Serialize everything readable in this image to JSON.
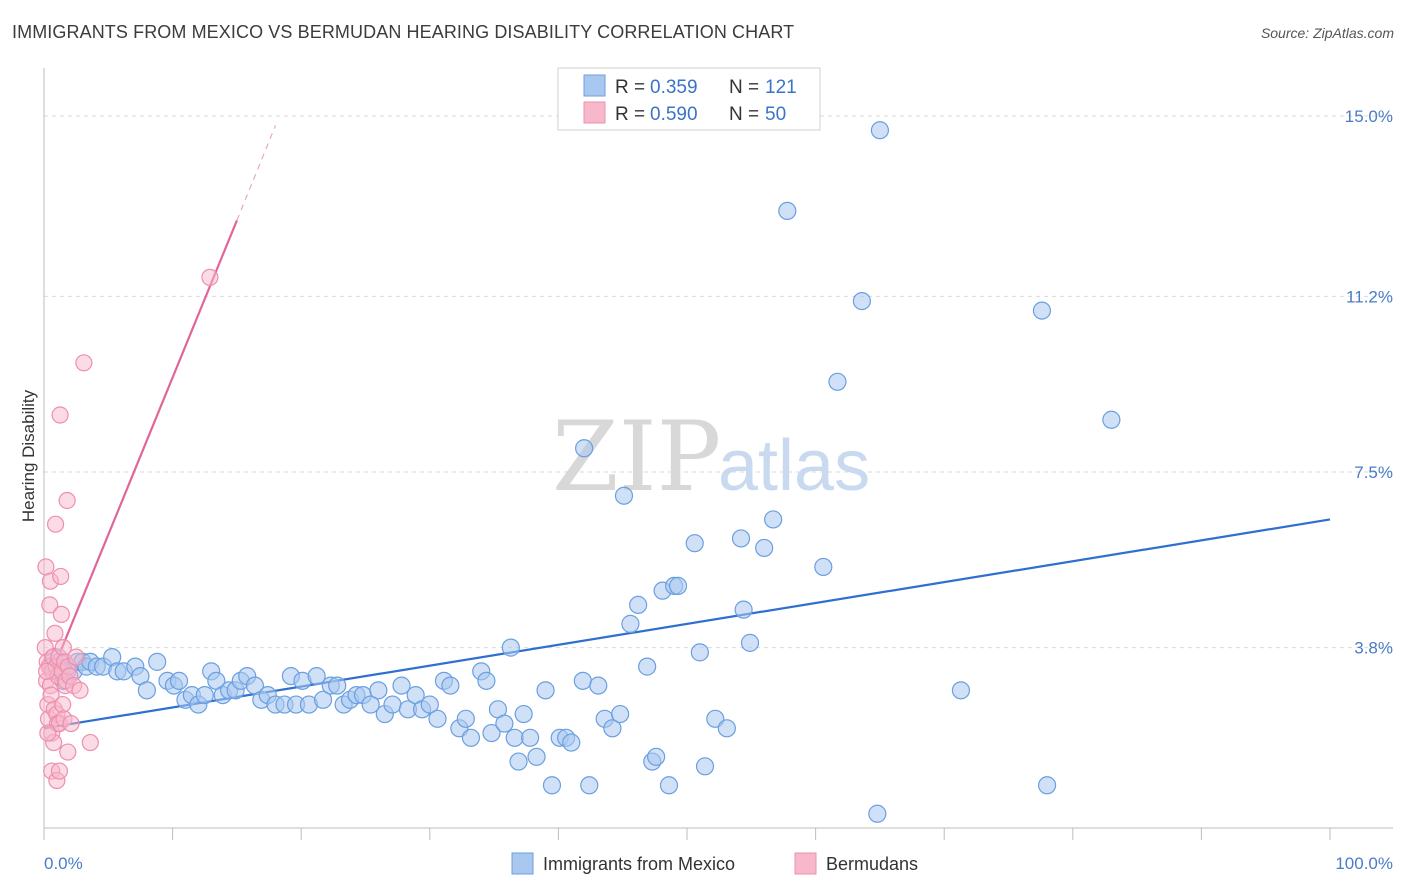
{
  "title": "IMMIGRANTS FROM MEXICO VS BERMUDAN HEARING DISABILITY CORRELATION CHART",
  "source": "Source: ZipAtlas.com",
  "watermark": {
    "zip": "ZIP",
    "atlas": "atlas"
  },
  "colors": {
    "blue_fill": "#a9c8f0",
    "blue_stroke": "#6a9fe0",
    "blue_line": "#2f6fd1",
    "pink_fill": "#f7b8cb",
    "pink_stroke": "#ee8fad",
    "pink_line": "#e0669a",
    "grid": "#d9d9d9",
    "tick_text": "#4a7cc7"
  },
  "stats": {
    "r_label": "R =",
    "n_label": "N =",
    "rows": [
      {
        "series": "Immigrants from Mexico",
        "r": "0.359",
        "n": "121"
      },
      {
        "series": "Bermudans",
        "r": "0.590",
        "n": "50"
      }
    ]
  },
  "chart_data": {
    "type": "scatter",
    "title": "IMMIGRANTS FROM MEXICO VS BERMUDAN HEARING DISABILITY CORRELATION CHART",
    "xlabel": "",
    "ylabel": "Hearing Disability",
    "xlim": [
      0,
      100
    ],
    "ylim": [
      0,
      15.8
    ],
    "x_tick_labels": [
      "0.0%",
      "100.0%"
    ],
    "y_ticks": [
      3.8,
      7.5,
      11.2,
      15.0
    ],
    "y_tick_labels": [
      "3.8%",
      "7.5%",
      "11.2%",
      "15.0%"
    ],
    "legend": [
      "Immigrants from Mexico",
      "Bermudans"
    ],
    "series": [
      {
        "name": "Immigrants from Mexico",
        "trendline": {
          "x": [
            0,
            100
          ],
          "y": [
            2.1,
            6.5
          ]
        },
        "points": [
          [
            0.6,
            3.4
          ],
          [
            0.8,
            3.6
          ],
          [
            1.0,
            3.3
          ],
          [
            1.2,
            3.5
          ],
          [
            1.5,
            3.1
          ],
          [
            1.8,
            3.3
          ],
          [
            2.3,
            3.3
          ],
          [
            2.6,
            3.5
          ],
          [
            3.0,
            3.5
          ],
          [
            3.3,
            3.4
          ],
          [
            3.6,
            3.5
          ],
          [
            4.1,
            3.4
          ],
          [
            4.6,
            3.4
          ],
          [
            5.3,
            3.6
          ],
          [
            5.7,
            3.3
          ],
          [
            6.2,
            3.3
          ],
          [
            7.1,
            3.4
          ],
          [
            7.5,
            3.2
          ],
          [
            8.0,
            2.9
          ],
          [
            8.8,
            3.5
          ],
          [
            9.6,
            3.1
          ],
          [
            10.1,
            3.0
          ],
          [
            10.5,
            3.1
          ],
          [
            11.0,
            2.7
          ],
          [
            11.5,
            2.8
          ],
          [
            12.0,
            2.6
          ],
          [
            12.5,
            2.8
          ],
          [
            13.0,
            3.3
          ],
          [
            13.4,
            3.1
          ],
          [
            13.9,
            2.8
          ],
          [
            14.4,
            2.9
          ],
          [
            14.9,
            2.9
          ],
          [
            15.3,
            3.1
          ],
          [
            15.8,
            3.2
          ],
          [
            16.4,
            3.0
          ],
          [
            16.9,
            2.7
          ],
          [
            17.4,
            2.8
          ],
          [
            18.0,
            2.6
          ],
          [
            18.7,
            2.6
          ],
          [
            19.2,
            3.2
          ],
          [
            19.6,
            2.6
          ],
          [
            20.1,
            3.1
          ],
          [
            20.6,
            2.6
          ],
          [
            21.2,
            3.2
          ],
          [
            21.7,
            2.7
          ],
          [
            22.3,
            3.0
          ],
          [
            22.8,
            3.0
          ],
          [
            23.3,
            2.6
          ],
          [
            23.8,
            2.7
          ],
          [
            24.3,
            2.8
          ],
          [
            24.8,
            2.8
          ],
          [
            25.4,
            2.6
          ],
          [
            26.0,
            2.9
          ],
          [
            26.5,
            2.4
          ],
          [
            27.1,
            2.6
          ],
          [
            27.8,
            3.0
          ],
          [
            28.3,
            2.5
          ],
          [
            28.9,
            2.8
          ],
          [
            29.4,
            2.5
          ],
          [
            30.0,
            2.6
          ],
          [
            30.6,
            2.3
          ],
          [
            31.1,
            3.1
          ],
          [
            31.6,
            3.0
          ],
          [
            32.3,
            2.1
          ],
          [
            32.8,
            2.3
          ],
          [
            33.2,
            1.9
          ],
          [
            34.0,
            3.3
          ],
          [
            34.4,
            3.1
          ],
          [
            34.8,
            2.0
          ],
          [
            35.3,
            2.5
          ],
          [
            35.8,
            2.2
          ],
          [
            36.3,
            3.8
          ],
          [
            36.6,
            1.9
          ],
          [
            36.9,
            1.4
          ],
          [
            37.3,
            2.4
          ],
          [
            37.8,
            1.9
          ],
          [
            38.3,
            1.5
          ],
          [
            39.0,
            2.9
          ],
          [
            39.5,
            0.9
          ],
          [
            40.1,
            1.9
          ],
          [
            40.6,
            1.9
          ],
          [
            41.0,
            1.8
          ],
          [
            41.9,
            3.1
          ],
          [
            42.0,
            8.0
          ],
          [
            42.4,
            0.9
          ],
          [
            43.1,
            3.0
          ],
          [
            43.6,
            2.3
          ],
          [
            44.2,
            2.1
          ],
          [
            44.8,
            2.4
          ],
          [
            45.1,
            7.0
          ],
          [
            45.6,
            4.3
          ],
          [
            46.2,
            4.7
          ],
          [
            46.9,
            3.4
          ],
          [
            47.3,
            1.4
          ],
          [
            47.6,
            1.5
          ],
          [
            48.1,
            5.0
          ],
          [
            48.6,
            0.9
          ],
          [
            49.0,
            5.1
          ],
          [
            49.3,
            5.1
          ],
          [
            50.6,
            6.0
          ],
          [
            51.0,
            3.7
          ],
          [
            51.4,
            1.3
          ],
          [
            52.2,
            2.3
          ],
          [
            53.1,
            2.1
          ],
          [
            54.2,
            6.1
          ],
          [
            54.4,
            4.6
          ],
          [
            54.9,
            3.9
          ],
          [
            56.0,
            5.9
          ],
          [
            56.7,
            6.5
          ],
          [
            57.8,
            13.0
          ],
          [
            60.6,
            5.5
          ],
          [
            61.7,
            9.4
          ],
          [
            63.6,
            11.1
          ],
          [
            64.8,
            0.3
          ],
          [
            65.0,
            14.7
          ],
          [
            71.3,
            2.9
          ],
          [
            77.6,
            10.9
          ],
          [
            78.0,
            0.9
          ],
          [
            83.0,
            8.6
          ]
        ]
      },
      {
        "name": "Bermudans",
        "trendline": {
          "x": [
            0.8,
            15.0
          ],
          "y": [
            3.4,
            12.8
          ],
          "dashed_extension": {
            "x": [
              15.0,
              18.0
            ],
            "y": [
              12.8,
              14.8
            ]
          }
        },
        "points": [
          [
            0.1,
            3.8
          ],
          [
            0.15,
            5.5
          ],
          [
            0.2,
            3.1
          ],
          [
            0.25,
            3.5
          ],
          [
            0.3,
            2.6
          ],
          [
            0.35,
            2.3
          ],
          [
            0.4,
            3.4
          ],
          [
            0.45,
            4.7
          ],
          [
            0.5,
            5.2
          ],
          [
            0.5,
            3.0
          ],
          [
            0.55,
            2.8
          ],
          [
            0.6,
            2.0
          ],
          [
            0.6,
            1.2
          ],
          [
            0.65,
            3.3
          ],
          [
            0.7,
            3.6
          ],
          [
            0.75,
            1.8
          ],
          [
            0.8,
            2.5
          ],
          [
            0.85,
            4.1
          ],
          [
            0.9,
            6.4
          ],
          [
            0.95,
            3.4
          ],
          [
            1.0,
            2.4
          ],
          [
            1.0,
            1.0
          ],
          [
            1.05,
            2.2
          ],
          [
            1.1,
            3.2
          ],
          [
            1.15,
            3.6
          ],
          [
            1.2,
            2.2
          ],
          [
            1.2,
            1.2
          ],
          [
            1.25,
            8.7
          ],
          [
            1.3,
            5.3
          ],
          [
            1.35,
            4.5
          ],
          [
            1.4,
            3.3
          ],
          [
            1.45,
            2.6
          ],
          [
            1.5,
            3.8
          ],
          [
            1.55,
            2.3
          ],
          [
            1.6,
            3.5
          ],
          [
            1.65,
            3.0
          ],
          [
            1.7,
            3.1
          ],
          [
            1.8,
            6.9
          ],
          [
            1.85,
            1.6
          ],
          [
            1.9,
            3.4
          ],
          [
            2.0,
            3.2
          ],
          [
            2.1,
            2.2
          ],
          [
            2.3,
            3.0
          ],
          [
            2.5,
            3.6
          ],
          [
            2.8,
            2.9
          ],
          [
            3.1,
            9.8
          ],
          [
            3.6,
            1.8
          ],
          [
            12.9,
            11.6
          ],
          [
            0.2,
            3.3
          ],
          [
            0.3,
            2.0
          ]
        ]
      }
    ]
  }
}
